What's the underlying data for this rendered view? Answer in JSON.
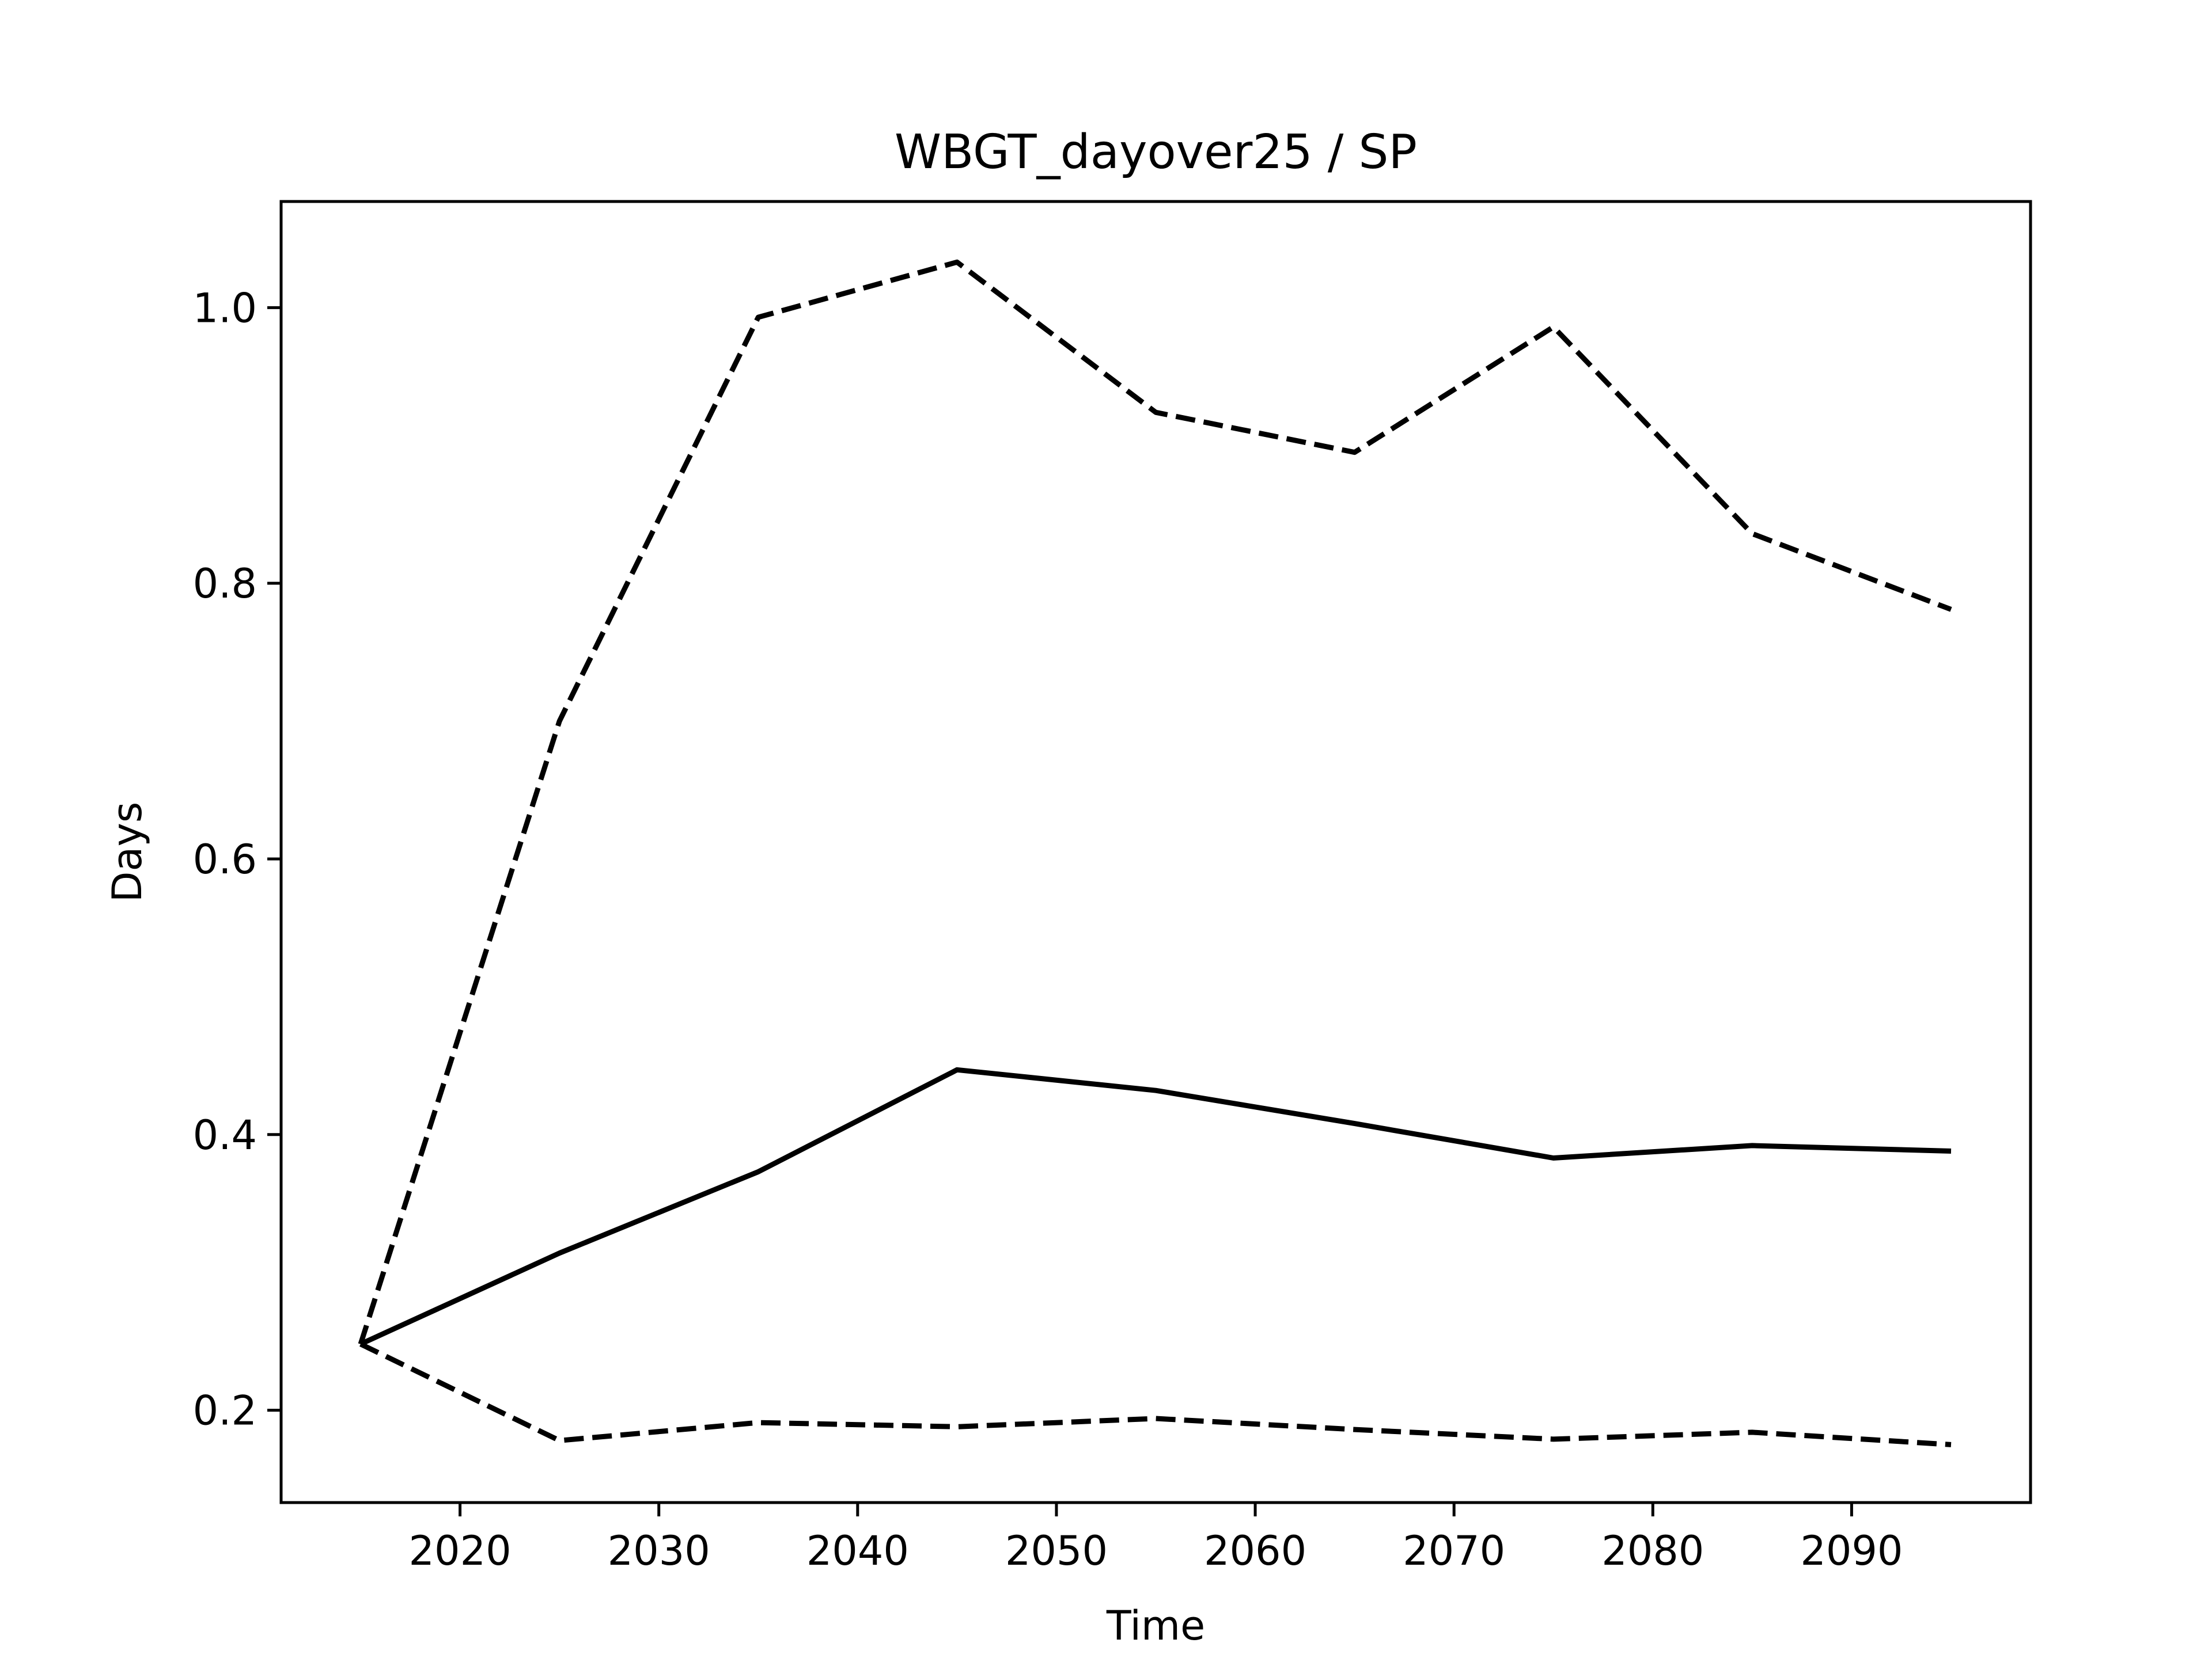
{
  "chart_data": {
    "type": "line",
    "title": "WBGT_dayover25 / SP",
    "xlabel": "Time",
    "ylabel": "Days",
    "xlim": [
      2011,
      2099
    ],
    "ylim": [
      0.133,
      1.077
    ],
    "xticks": [
      2020,
      2030,
      2040,
      2050,
      2060,
      2070,
      2080,
      2090
    ],
    "xtick_labels": [
      "2020",
      "2030",
      "2040",
      "2050",
      "2060",
      "2070",
      "2080",
      "2090"
    ],
    "yticks": [
      0.2,
      0.4,
      0.6,
      0.8,
      1.0
    ],
    "ytick_labels": [
      "0.2",
      "0.4",
      "0.6",
      "0.8",
      "1.0"
    ],
    "grid": false,
    "legend": null,
    "x": [
      2015,
      2025,
      2035,
      2045,
      2055,
      2065,
      2075,
      2085,
      2095
    ],
    "series": [
      {
        "style": "solid",
        "color": "#000000",
        "values": [
          0.248,
          0.314,
          0.373,
          0.447,
          0.432,
          0.408,
          0.383,
          0.392,
          0.388
        ]
      },
      {
        "style": "dashed",
        "color": "#000000",
        "values": [
          0.248,
          0.7,
          0.993,
          1.033,
          0.924,
          0.895,
          0.986,
          0.836,
          0.781
        ]
      },
      {
        "style": "dashed",
        "color": "#000000",
        "values": [
          0.248,
          0.178,
          0.191,
          0.188,
          0.194,
          0.186,
          0.179,
          0.184,
          0.175
        ]
      }
    ]
  }
}
